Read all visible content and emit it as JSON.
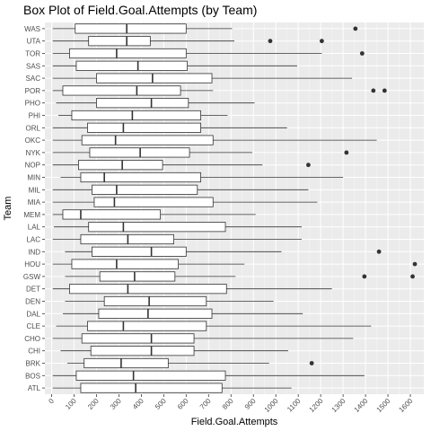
{
  "chart_data": {
    "type": "boxplot",
    "title": "Box Plot of Field.Goal.Attempts (by Team)",
    "xlabel": "Field.Goal.Attempts",
    "ylabel": "Team",
    "xlim": [
      -30,
      1660
    ],
    "x_ticks": [
      0,
      100,
      200,
      300,
      400,
      500,
      600,
      700,
      800,
      900,
      1000,
      1100,
      1200,
      1300,
      1400,
      1500,
      1600
    ],
    "grid": true,
    "legend": "none",
    "colors": {
      "panel_bg": "#ebebeb",
      "grid_major": "#ffffff",
      "box_fill": "#ffffff",
      "box_line": "#333333",
      "outlier": "#333333"
    },
    "categories": [
      "ATL",
      "BOS",
      "BRK",
      "CHI",
      "CHO",
      "CLE",
      "DAL",
      "DEN",
      "DET",
      "GSW",
      "HOU",
      "IND",
      "LAC",
      "LAL",
      "MEM",
      "MIA",
      "MIL",
      "MIN",
      "NOP",
      "NYK",
      "OKC",
      "ORL",
      "PHI",
      "PHO",
      "POR",
      "SAC",
      "SAS",
      "TOR",
      "UTA",
      "WAS"
    ],
    "boxes": [
      {
        "team": "ATL",
        "min": 5,
        "q1": 130,
        "median": 375,
        "q3": 760,
        "max": 1070,
        "outliers": []
      },
      {
        "team": "BOS",
        "min": 5,
        "q1": 110,
        "median": 365,
        "q3": 775,
        "max": 1395,
        "outliers": []
      },
      {
        "team": "BRK",
        "min": 70,
        "q1": 145,
        "median": 310,
        "q3": 520,
        "max": 970,
        "outliers": [
          1160
        ]
      },
      {
        "team": "CHI",
        "min": 40,
        "q1": 175,
        "median": 445,
        "q3": 635,
        "max": 1055,
        "outliers": []
      },
      {
        "team": "CHO",
        "min": 5,
        "q1": 135,
        "median": 445,
        "q3": 635,
        "max": 1345,
        "outliers": []
      },
      {
        "team": "CLE",
        "min": 20,
        "q1": 160,
        "median": 320,
        "q3": 690,
        "max": 1425,
        "outliers": []
      },
      {
        "team": "DAL",
        "min": 50,
        "q1": 210,
        "median": 430,
        "q3": 715,
        "max": 1120,
        "outliers": []
      },
      {
        "team": "DEN",
        "min": 60,
        "q1": 235,
        "median": 435,
        "q3": 690,
        "max": 990,
        "outliers": []
      },
      {
        "team": "DET",
        "min": 5,
        "q1": 80,
        "median": 340,
        "q3": 780,
        "max": 1250,
        "outliers": []
      },
      {
        "team": "GSW",
        "min": 60,
        "q1": 215,
        "median": 370,
        "q3": 550,
        "max": 820,
        "outliers": [
          1395,
          1610
        ]
      },
      {
        "team": "HOU",
        "min": 5,
        "q1": 90,
        "median": 290,
        "q3": 565,
        "max": 860,
        "outliers": [
          1620
        ]
      },
      {
        "team": "IND",
        "min": 60,
        "q1": 180,
        "median": 445,
        "q3": 600,
        "max": 1025,
        "outliers": [
          1460
        ]
      },
      {
        "team": "LAC",
        "min": 5,
        "q1": 130,
        "median": 340,
        "q3": 545,
        "max": 1115,
        "outliers": []
      },
      {
        "team": "LAL",
        "min": 10,
        "q1": 165,
        "median": 320,
        "q3": 775,
        "max": 1115,
        "outliers": []
      },
      {
        "team": "MEM",
        "min": 5,
        "q1": 50,
        "median": 130,
        "q3": 485,
        "max": 910,
        "outliers": []
      },
      {
        "team": "MIA",
        "min": 5,
        "q1": 190,
        "median": 280,
        "q3": 720,
        "max": 1185,
        "outliers": []
      },
      {
        "team": "MIL",
        "min": 5,
        "q1": 180,
        "median": 290,
        "q3": 650,
        "max": 1145,
        "outliers": []
      },
      {
        "team": "MIN",
        "min": 40,
        "q1": 130,
        "median": 235,
        "q3": 665,
        "max": 1300,
        "outliers": []
      },
      {
        "team": "NOP",
        "min": 5,
        "q1": 120,
        "median": 315,
        "q3": 495,
        "max": 940,
        "outliers": [
          1145
        ]
      },
      {
        "team": "NYK",
        "min": 5,
        "q1": 170,
        "median": 395,
        "q3": 615,
        "max": 895,
        "outliers": [
          1315
        ]
      },
      {
        "team": "OKC",
        "min": 5,
        "q1": 135,
        "median": 285,
        "q3": 720,
        "max": 1450,
        "outliers": []
      },
      {
        "team": "ORL",
        "min": 5,
        "q1": 160,
        "median": 320,
        "q3": 665,
        "max": 1050,
        "outliers": []
      },
      {
        "team": "PHI",
        "min": 30,
        "q1": 90,
        "median": 360,
        "q3": 665,
        "max": 785,
        "outliers": []
      },
      {
        "team": "PHO",
        "min": 20,
        "q1": 200,
        "median": 445,
        "q3": 610,
        "max": 905,
        "outliers": []
      },
      {
        "team": "POR",
        "min": 5,
        "q1": 50,
        "median": 380,
        "q3": 575,
        "max": 720,
        "outliers": [
          1435,
          1485
        ]
      },
      {
        "team": "SAC",
        "min": 5,
        "q1": 200,
        "median": 450,
        "q3": 715,
        "max": 1340,
        "outliers": []
      },
      {
        "team": "SAS",
        "min": 5,
        "q1": 110,
        "median": 385,
        "q3": 605,
        "max": 1095,
        "outliers": []
      },
      {
        "team": "TOR",
        "min": 5,
        "q1": 80,
        "median": 290,
        "q3": 600,
        "max": 1205,
        "outliers": [
          1385
        ]
      },
      {
        "team": "UTA",
        "min": 5,
        "q1": 165,
        "median": 335,
        "q3": 440,
        "max": 815,
        "outliers": [
          975,
          1205
        ]
      },
      {
        "team": "WAS",
        "min": 5,
        "q1": 105,
        "median": 335,
        "q3": 600,
        "max": 805,
        "outliers": [
          1355
        ]
      }
    ]
  }
}
